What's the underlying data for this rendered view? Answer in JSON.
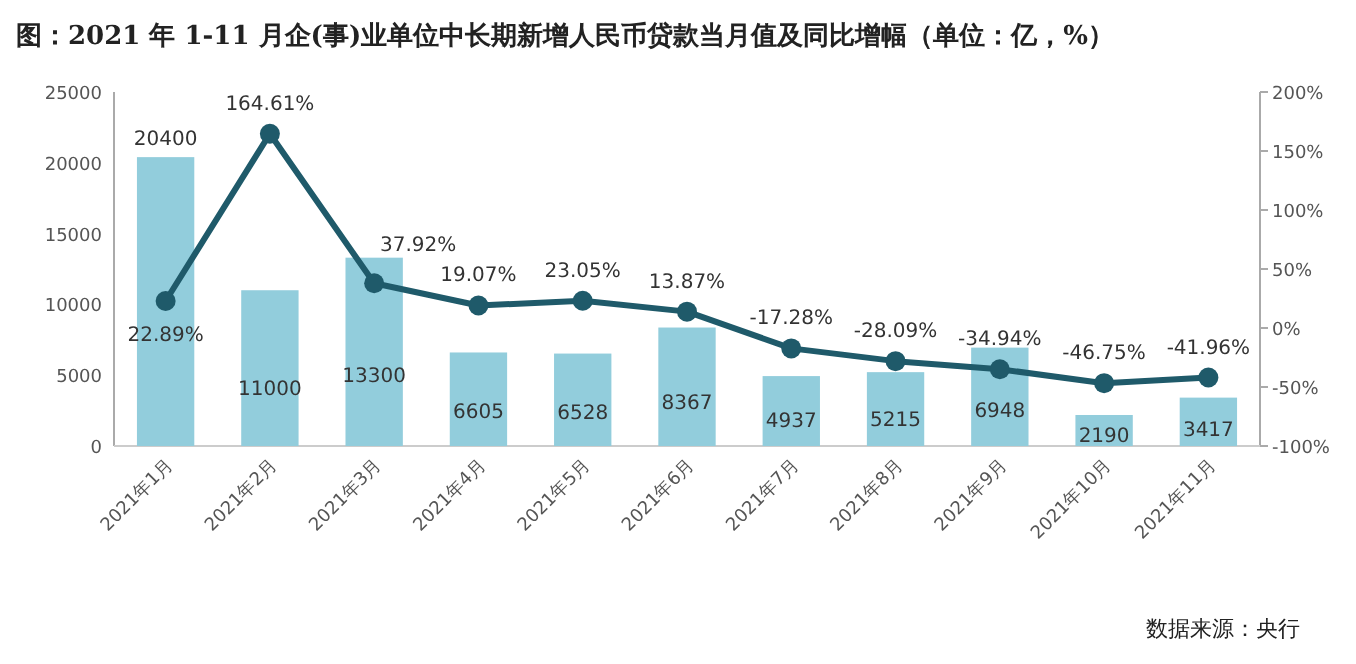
{
  "chart_data": {
    "type": "bar",
    "title": "图：2021 年 1-11 月企(事)业单位中长期新增人民币贷款当月值及同比增幅（单位：亿，%）",
    "categories": [
      "2021年1月",
      "2021年2月",
      "2021年3月",
      "2021年4月",
      "2021年5月",
      "2021年6月",
      "2021年7月",
      "2021年8月",
      "2021年9月",
      "2021年10月",
      "2021年11月"
    ],
    "series": [
      {
        "color": "#92cddc",
        "values": [
          20400,
          11000,
          13300,
          6605,
          6528,
          8367,
          4937,
          5215,
          6948,
          2190,
          3417
        ],
        "value_labels": [
          "20400",
          "11000",
          "13300",
          "6605",
          "6528",
          "8367",
          "4937",
          "5215",
          "6948",
          "2190",
          "3417"
        ]
      },
      {
        "type": "line",
        "axis": "y2",
        "color": "#1f5a6a",
        "values": [
          22.89,
          164.61,
          37.92,
          19.07,
          23.05,
          13.87,
          -17.28,
          -28.09,
          -34.94,
          -46.75,
          -41.96
        ],
        "value_labels": [
          "22.89%",
          "164.61%",
          "37.92%",
          "19.07%",
          "23.05%",
          "13.87%",
          "-17.28%",
          "-28.09%",
          "-34.94%",
          "-46.75%",
          "-41.96%"
        ]
      }
    ],
    "ylim": [
      0,
      25000
    ],
    "yticks": [
      0,
      5000,
      10000,
      15000,
      20000,
      25000
    ],
    "y2lim": [
      -100,
      200
    ],
    "y2ticks": [
      {
        "value": -100,
        "label": "-100%"
      },
      {
        "value": -50,
        "label": "-50%"
      },
      {
        "value": 0,
        "label": "0%"
      },
      {
        "value": 50,
        "label": "50%"
      },
      {
        "value": 100,
        "label": "100%"
      },
      {
        "value": 150,
        "label": "150%"
      },
      {
        "value": 200,
        "label": "200%"
      }
    ],
    "marker": "circle",
    "grid": false,
    "annotations": [
      "数据来源：央行"
    ]
  }
}
